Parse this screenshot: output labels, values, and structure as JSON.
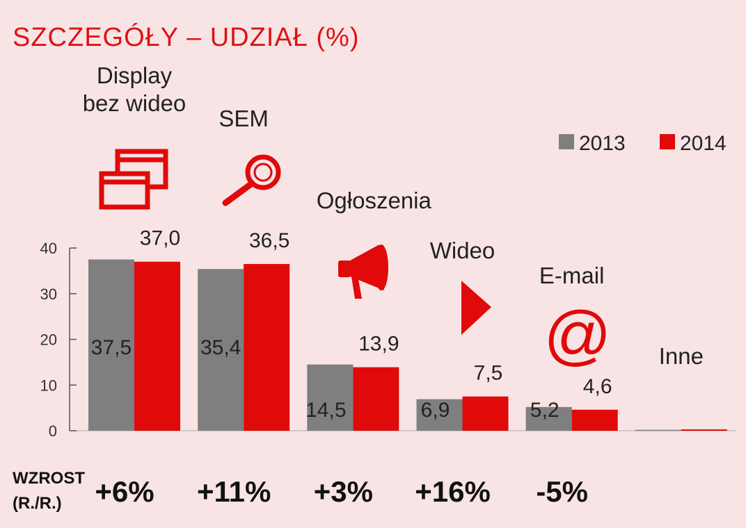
{
  "chart_data": {
    "type": "bar",
    "title": "SZCZEGÓŁY – UDZIAŁ (%)",
    "categories": [
      "Display\nbez wideo",
      "SEM",
      "Ogłoszenia",
      "Wideo",
      "E-mail",
      "Inne"
    ],
    "series": [
      {
        "name": "2013",
        "color": "#7f7f7f",
        "values": [
          37.5,
          35.4,
          14.5,
          6.9,
          5.2,
          0.2
        ]
      },
      {
        "name": "2014",
        "color": "#e00a0a",
        "values": [
          37.0,
          36.5,
          13.9,
          7.5,
          4.6,
          0.3
        ]
      }
    ],
    "value_labels": {
      "2013": [
        "37,5",
        "35,4",
        "14,5",
        "6,9",
        "5,2",
        ""
      ],
      "2014": [
        "37,0",
        "36,5",
        "13,9",
        "7,5",
        "4,6",
        ""
      ]
    },
    "yticks": [
      "0",
      "10",
      "20",
      "30",
      "40"
    ],
    "ylim": [
      0,
      40
    ],
    "legend_position": "top-right",
    "growth_header": [
      "WZROST",
      "(R./R.)"
    ],
    "growth": [
      "+6%",
      "+11%",
      "+3%",
      "+16%",
      "-5%",
      ""
    ],
    "icons": [
      "display-windows-icon",
      "magnifier-icon",
      "megaphone-icon",
      "play-icon",
      "at-sign-icon",
      ""
    ]
  }
}
